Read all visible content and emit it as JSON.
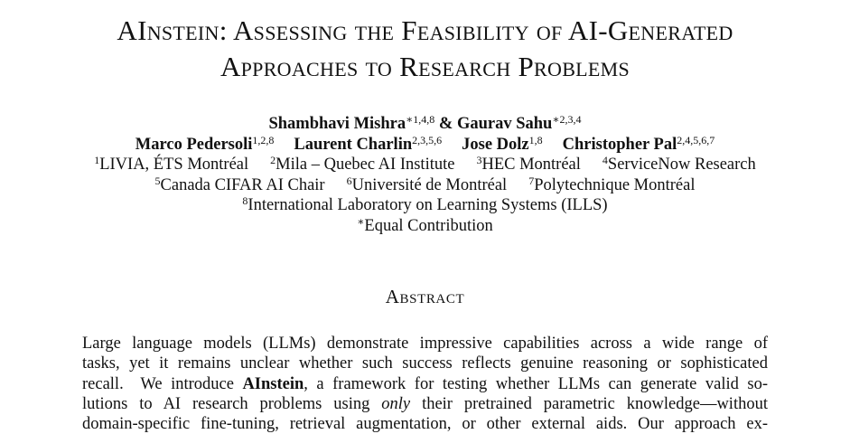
{
  "title": {
    "line1": "AInstein: Assessing the Feasibility of AI-Generated",
    "line2": "Approaches to Research Problems"
  },
  "authors": {
    "row1": [
      {
        "name": "Shambhavi Mishra",
        "sup": "∗1,4,8"
      },
      {
        "joiner": " & "
      },
      {
        "name": "Gaurav Sahu",
        "sup": "∗2,3,4"
      }
    ],
    "row2": [
      {
        "name": "Marco Pedersoli",
        "sup": "1,2,8"
      },
      {
        "name": "Laurent Charlin",
        "sup": "2,3,5,6"
      },
      {
        "name": "Jose Dolz",
        "sup": "1,8"
      },
      {
        "name": "Christopher Pal",
        "sup": "2,4,5,6,7"
      }
    ]
  },
  "affiliations": {
    "row1": [
      {
        "sup": "1",
        "text": "LIVIA, ÉTS Montréal"
      },
      {
        "sup": "2",
        "text": "Mila – Quebec AI Institute"
      },
      {
        "sup": "3",
        "text": "HEC Montréal"
      },
      {
        "sup": "4",
        "text": "ServiceNow Research"
      }
    ],
    "row2": [
      {
        "sup": "5",
        "text": "Canada CIFAR AI Chair"
      },
      {
        "sup": "6",
        "text": "Université de Montréal"
      },
      {
        "sup": "7",
        "text": "Polytechnique Montréal"
      }
    ],
    "row3": [
      {
        "sup": "8",
        "text": "International Laboratory on Learning Systems (ILLS)"
      }
    ],
    "equal": {
      "sup": "∗",
      "text": "Equal Contribution"
    }
  },
  "abstract": {
    "heading": "Abstract",
    "lines": [
      "Large language models (LLMs) demonstrate impressive capabilities across a wide range of",
      "tasks, yet it remains unclear whether such success reflects genuine reasoning or sophisticated",
      {
        "pre": "recall.  We introduce ",
        "bold": "AInstein",
        "post": ", a framework for testing whether LLMs can generate valid so-"
      },
      {
        "pre": "lutions to AI research problems using ",
        "italic": "only",
        "post": " their pretrained parametric knowledge—without"
      },
      "domain-specific fine-tuning, retrieval augmentation, or other external aids.  Our approach ex-"
    ]
  }
}
